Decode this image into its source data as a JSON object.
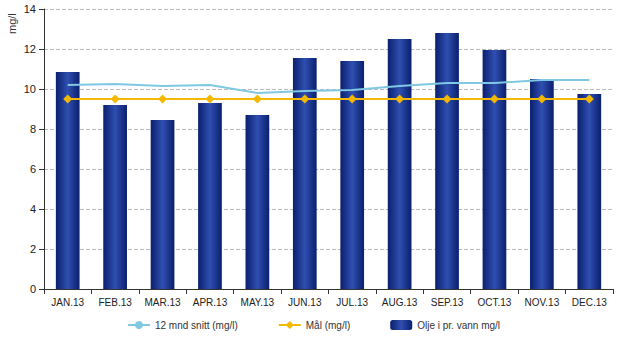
{
  "chart_data": {
    "type": "bar",
    "y_label": "mg/l",
    "categories": [
      "JAN.13",
      "FEB.13",
      "MAR.13",
      "APR.13",
      "MAY.13",
      "JUN.13",
      "JUL.13",
      "AUG.13",
      "SEP.13",
      "OCT.13",
      "NOV.13",
      "DEC.13"
    ],
    "series": [
      {
        "name": "12 mnd snitt (mg/l)",
        "type": "line",
        "color": "#7ec8e3",
        "marker": "none",
        "values": [
          10.2,
          10.25,
          10.15,
          10.2,
          9.8,
          9.9,
          9.95,
          10.15,
          10.3,
          10.3,
          10.45,
          10.45
        ]
      },
      {
        "name": "Mål (mg/l)",
        "type": "line",
        "color": "#f5b800",
        "marker": "diamond",
        "values": [
          9.5,
          9.5,
          9.5,
          9.5,
          9.5,
          9.5,
          9.5,
          9.5,
          9.5,
          9.5,
          9.5,
          9.5
        ]
      },
      {
        "name": "Olje i pr. vann mg/l",
        "type": "bar",
        "color": "#0a1f6e",
        "values": [
          10.85,
          9.2,
          8.45,
          9.3,
          8.7,
          11.55,
          11.4,
          12.5,
          12.8,
          11.95,
          10.5,
          9.75
        ]
      }
    ],
    "ylim": [
      0,
      14
    ],
    "yticks": [
      0,
      2,
      4,
      6,
      8,
      10,
      12,
      14
    ],
    "grid": true,
    "legend": "bottom"
  }
}
